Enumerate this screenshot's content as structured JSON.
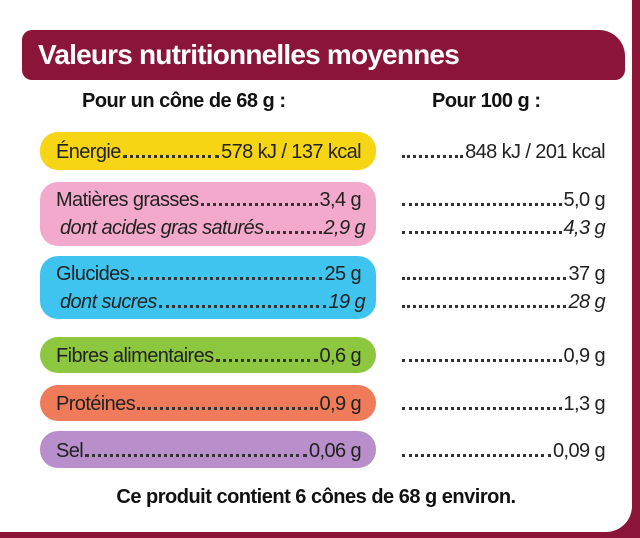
{
  "title": "Valeurs nutritionnelles moyennes",
  "columns": [
    "Pour un cône de 68 g :",
    "Pour 100 g :"
  ],
  "groups": [
    {
      "color": "#f6d514",
      "rows": [
        {
          "label": "Énergie",
          "per_cone": "578 kJ / 137 kcal",
          "per_100g": "848 kJ / 201 kcal"
        }
      ]
    },
    {
      "color": "#f3a9cb",
      "rows": [
        {
          "label": "Matières grasses",
          "per_cone": "3,4 g",
          "per_100g": "5,0 g"
        },
        {
          "label": "dont acides gras saturés",
          "per_cone": "2,9 g",
          "per_100g": "4,3 g"
        }
      ]
    },
    {
      "color": "#3ec4ef",
      "rows": [
        {
          "label": "Glucides",
          "per_cone": "25 g",
          "per_100g": "37 g"
        },
        {
          "label": "dont sucres",
          "per_cone": "19 g",
          "per_100g": "28 g"
        }
      ]
    },
    {
      "color": "#8dc63f",
      "rows": [
        {
          "label": "Fibres alimentaires",
          "per_cone": "0,6 g",
          "per_100g": "0,9 g"
        }
      ]
    },
    {
      "color": "#f07b5b",
      "rows": [
        {
          "label": "Protéines",
          "per_cone": "0,9 g",
          "per_100g": "1,3 g"
        }
      ]
    },
    {
      "color": "#b88fca",
      "rows": [
        {
          "label": "Sel",
          "per_cone": "0,06 g",
          "per_100g": "0,09 g"
        }
      ]
    }
  ],
  "footer": "Ce produit contient 6 cônes de 68 g environ."
}
